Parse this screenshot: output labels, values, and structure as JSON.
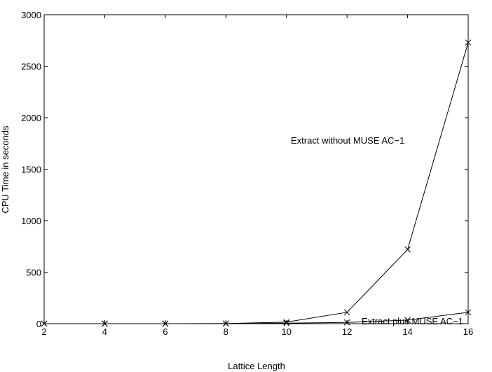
{
  "chart_data": {
    "type": "line",
    "xlabel": "Lattice Length",
    "ylabel": "CPU Time in seconds",
    "xlim": [
      2,
      16
    ],
    "ylim": [
      0,
      3000
    ],
    "xticks": [
      2,
      4,
      6,
      8,
      10,
      12,
      14,
      16
    ],
    "yticks": [
      0,
      500,
      1000,
      1500,
      2000,
      2500,
      3000
    ],
    "grid": false,
    "marker": "x",
    "x": [
      2,
      4,
      6,
      8,
      10,
      12,
      14,
      16
    ],
    "series": [
      {
        "name": "Extract without MUSE AC−1",
        "values": [
          0,
          0,
          0,
          1,
          15,
          110,
          720,
          2730
        ]
      },
      {
        "name": "Extract plus  MUSE AC−1",
        "values": [
          0,
          0,
          0,
          1,
          5,
          12,
          35,
          110
        ]
      }
    ],
    "annotations": [
      {
        "text": "Extract without MUSE AC−1",
        "series": 0
      },
      {
        "text": "Extract plus  MUSE AC−1",
        "series": 1
      }
    ]
  }
}
